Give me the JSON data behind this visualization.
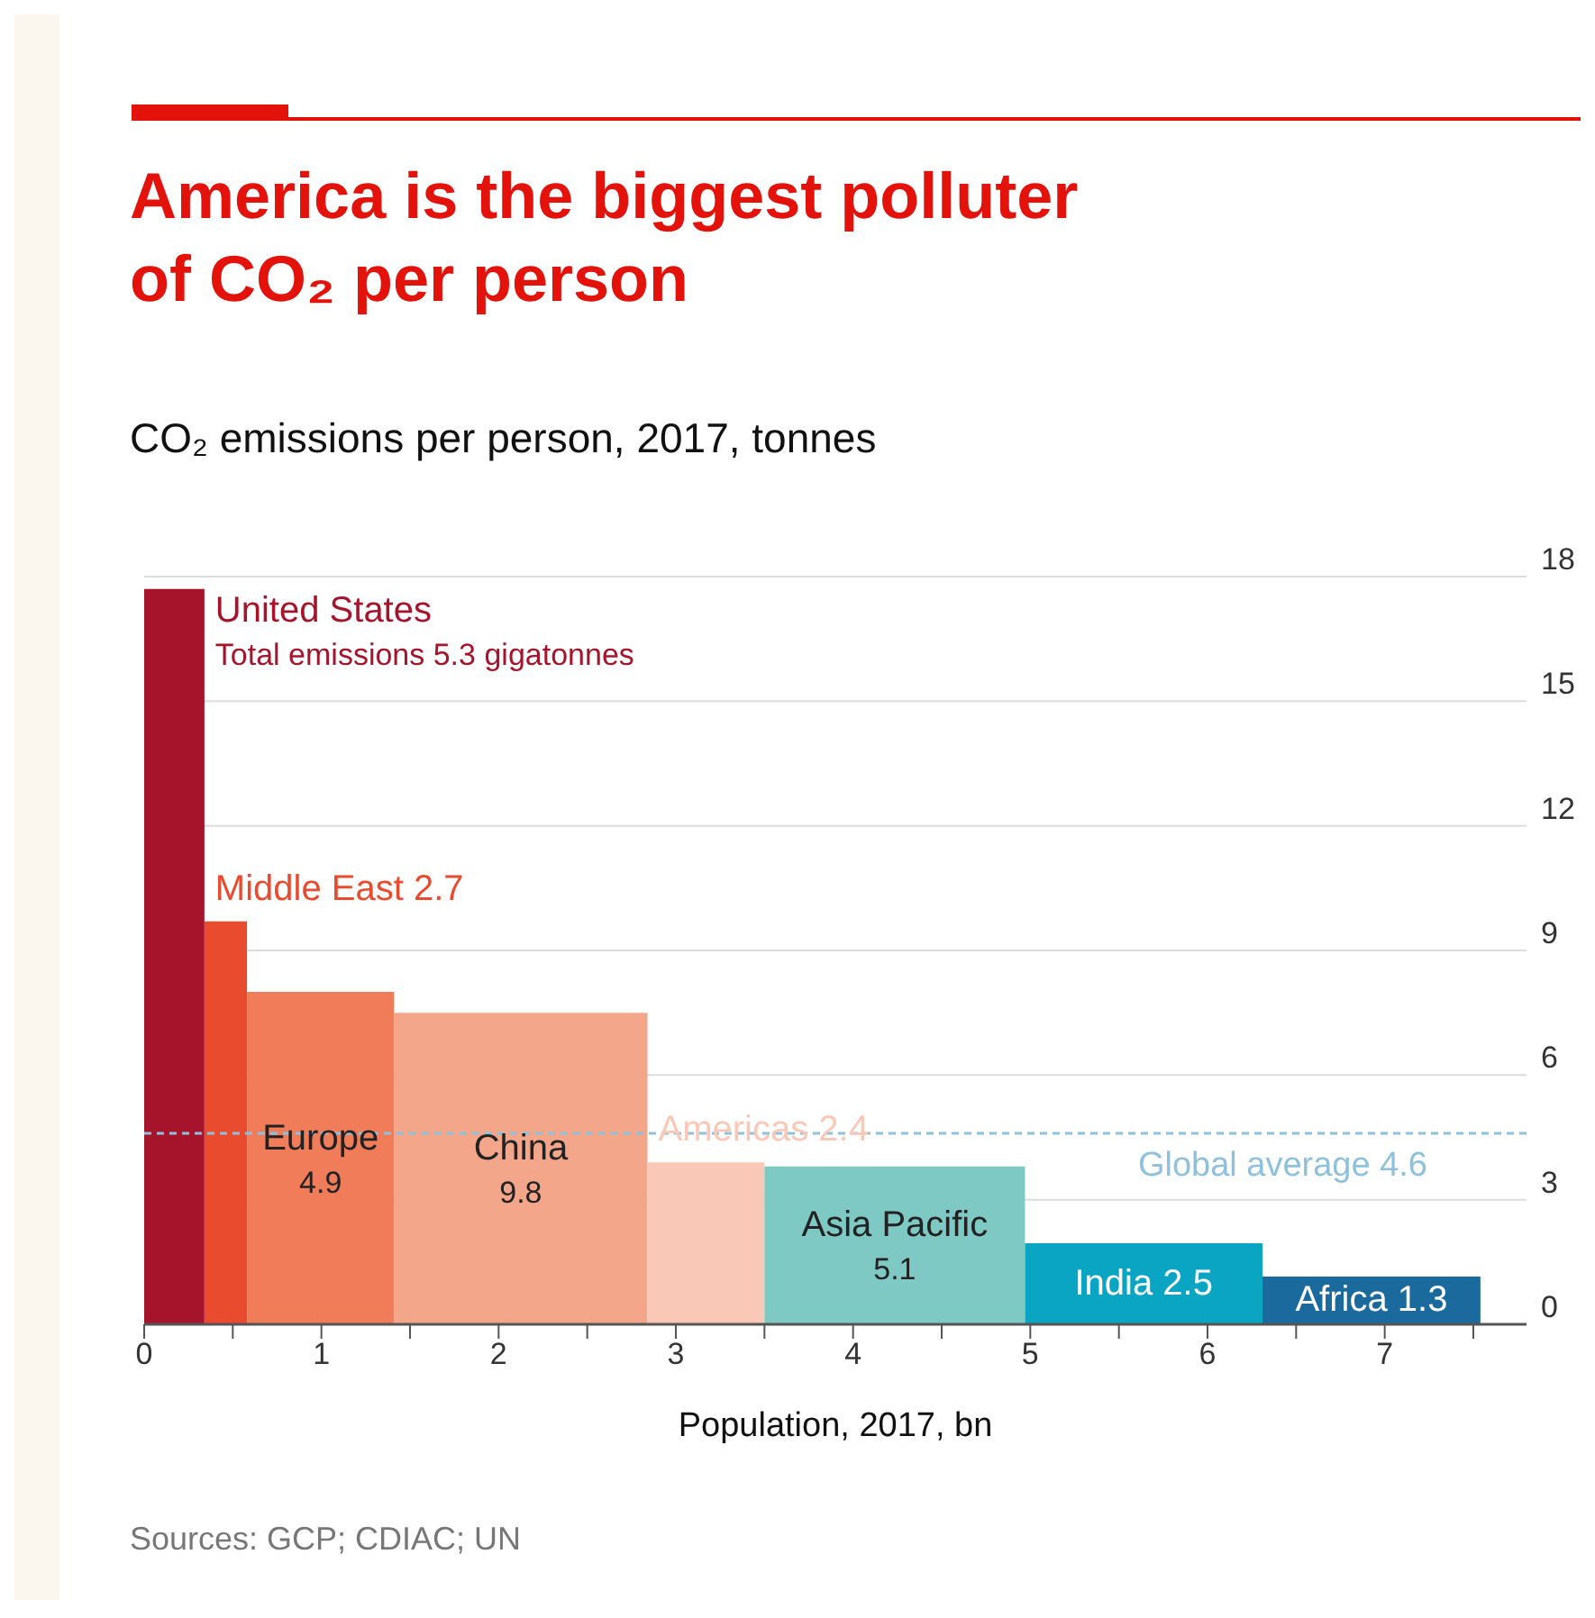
{
  "chart_data": {
    "type": "histogram",
    "title": "America is the biggest polluter\nof CO₂ per person",
    "subtitle": "CO₂ emissions per person, 2017, tonnes",
    "xlabel": "Population, 2017, bn",
    "bins": [
      0,
      0.34,
      0.58,
      1.41,
      2.84,
      3.5,
      4.97,
      6.31,
      7.54
    ],
    "values": [
      17.7,
      9.7,
      8.0,
      7.5,
      3.9,
      3.8,
      1.95,
      1.15
    ],
    "colors": [
      "#a6142b",
      "#e94b2f",
      "#f07c5a",
      "#f4a68a",
      "#f9c8b6",
      "#7fc9c4",
      "#0aa5c2",
      "#1a6a9e"
    ],
    "xlim": [
      0,
      7.8
    ],
    "xticks": [
      0,
      {
        "value": 0.5,
        "label": null
      },
      1,
      {
        "value": 1.5,
        "label": null
      },
      2,
      {
        "value": 2.5,
        "label": null
      },
      3,
      {
        "value": 3.5,
        "label": null
      },
      4,
      {
        "value": 4.5,
        "label": null
      },
      5,
      {
        "value": 5.5,
        "label": null
      },
      6,
      {
        "value": 6.5,
        "label": null
      },
      7,
      {
        "value": 7.5,
        "label": null
      }
    ],
    "ylim": [
      0,
      18
    ],
    "yticks": [
      0,
      3,
      6,
      9,
      12,
      15,
      18
    ],
    "grid": "y",
    "ref_lines": [
      {
        "axis": "y",
        "value": 4.6,
        "label": "Global average 4.6",
        "color": "#8fc1dc",
        "line_style": "dashed"
      }
    ],
    "annotations": [
      "United States\nTotal emissions 5.3 gigatonnes",
      "Middle East 2.7",
      "Europe\n4.9",
      "China\n9.8",
      "Americas 2.4",
      "Asia Pacific\n5.1",
      "India 2.5",
      "Africa 1.3",
      "Sources: GCP; CDIAC; UN"
    ]
  }
}
